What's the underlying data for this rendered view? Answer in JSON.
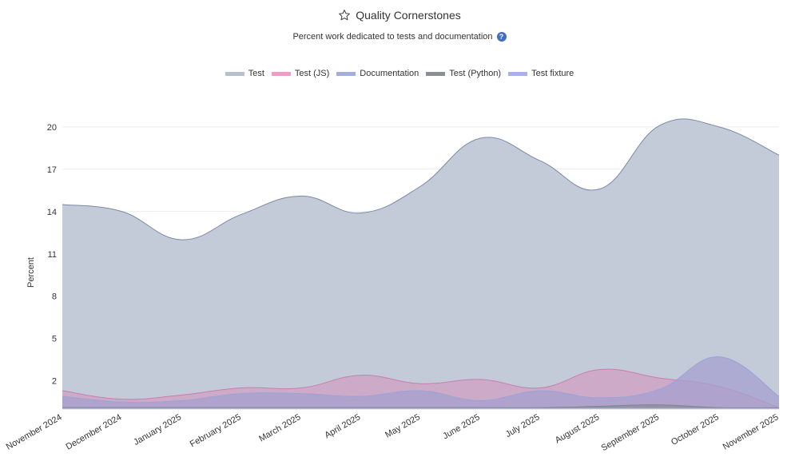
{
  "header": {
    "title": "Quality Cornerstones",
    "subtitle": "Percent work dedicated to tests and documentation",
    "help_symbol": "?"
  },
  "legend": [
    {
      "label": "Test",
      "color": "#b8c0d0"
    },
    {
      "label": "Test (JS)",
      "color": "#e6a1c4"
    },
    {
      "label": "Documentation",
      "color": "#a3aee0"
    },
    {
      "label": "Test (Python)",
      "color": "#8a8e95"
    },
    {
      "label": "Test fixture",
      "color": "#a9b2e8"
    }
  ],
  "chart_data": {
    "type": "area",
    "title": "Quality Cornerstones",
    "subtitle": "Percent work dedicated to tests and documentation",
    "xlabel": "",
    "ylabel": "Percent",
    "ylim": [
      0,
      20.5
    ],
    "yticks": [
      2,
      5,
      8,
      11,
      14,
      17,
      20
    ],
    "grid": true,
    "legend_position": "top-center",
    "categories": [
      "November 2024",
      "December 2024",
      "January 2025",
      "February 2025",
      "March 2025",
      "April 2025",
      "May 2025",
      "June 2025",
      "July 2025",
      "August 2025",
      "September 2025",
      "October 2025",
      "November 2025"
    ],
    "series": [
      {
        "name": "Test",
        "color": "#c1c8d6",
        "stroke": "#7a8aa8",
        "values": [
          14.5,
          14.0,
          12.0,
          13.8,
          15.1,
          13.9,
          15.8,
          19.2,
          17.6,
          15.6,
          20.1,
          20.0,
          18.0
        ]
      },
      {
        "name": "Test (JS)",
        "color": "#cf9fc3",
        "stroke": "#c77fb0",
        "values": [
          1.3,
          0.7,
          1.0,
          1.5,
          1.5,
          2.4,
          1.8,
          2.1,
          1.5,
          2.8,
          2.2,
          1.6,
          0.1
        ]
      },
      {
        "name": "Documentation",
        "color": "#a5a0cf",
        "stroke": "#9aa3d8",
        "values": [
          0.9,
          0.5,
          0.6,
          1.1,
          1.1,
          0.9,
          1.3,
          0.6,
          1.3,
          0.8,
          1.4,
          3.7,
          0.9
        ]
      },
      {
        "name": "Test (Python)",
        "color": "#8a8e95",
        "stroke": "#80848c",
        "values": [
          0.1,
          0.1,
          0.1,
          0.1,
          0.1,
          0.1,
          0.1,
          0.1,
          0.1,
          0.2,
          0.3,
          0.1,
          0.1
        ]
      },
      {
        "name": "Test fixture",
        "color": "#a9b2e8",
        "stroke": "#9aa3d8",
        "values": [
          0.05,
          0.05,
          0.05,
          0.05,
          0.05,
          0.05,
          0.05,
          0.05,
          0.05,
          0.05,
          0.05,
          0.05,
          0.05
        ]
      }
    ]
  }
}
